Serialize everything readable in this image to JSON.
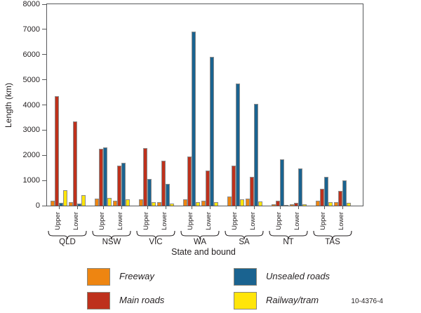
{
  "figure_note": "10-4376-4",
  "chart_data": {
    "type": "bar",
    "title": "",
    "ylabel": "Length (km)",
    "xlabel": "State and bound",
    "ylim": [
      0,
      8000
    ],
    "yticks": [
      0,
      1000,
      2000,
      3000,
      4000,
      5000,
      6000,
      7000,
      8000
    ],
    "grid": false,
    "legend_position": "bottom",
    "bounds": [
      "Upper",
      "Lower"
    ],
    "series": [
      {
        "name": "Freeway",
        "color": "#EE8511"
      },
      {
        "name": "Main roads",
        "color": "#BE311C"
      },
      {
        "name": "Unsealed roads",
        "color": "#1A6390"
      },
      {
        "name": "Railway/tram",
        "color": "#FFE50A"
      }
    ],
    "groups": [
      {
        "state": "QLD",
        "upper": [
          200,
          4350,
          100,
          620
        ],
        "lower": [
          140,
          3350,
          90,
          420
        ]
      },
      {
        "state": "NSW",
        "upper": [
          280,
          2250,
          2320,
          320
        ],
        "lower": [
          200,
          1590,
          1700,
          250
        ]
      },
      {
        "state": "VIC",
        "upper": [
          250,
          2280,
          1070,
          130
        ],
        "lower": [
          150,
          1790,
          870,
          80
        ]
      },
      {
        "state": "WA",
        "upper": [
          260,
          1950,
          6900,
          150
        ],
        "lower": [
          200,
          1400,
          5900,
          130
        ]
      },
      {
        "state": "SA",
        "upper": [
          350,
          1600,
          4850,
          240
        ],
        "lower": [
          280,
          1150,
          4050,
          160
        ]
      },
      {
        "state": "NT",
        "upper": [
          50,
          200,
          1850,
          40
        ],
        "lower": [
          70,
          120,
          1480,
          50
        ]
      },
      {
        "state": "TAS",
        "upper": [
          200,
          680,
          1150,
          150
        ],
        "lower": [
          140,
          580,
          990,
          110
        ]
      }
    ],
    "axis_color": "#58595b",
    "bar_outline_color": "#8c8c8c",
    "text_color": "#231f20"
  }
}
